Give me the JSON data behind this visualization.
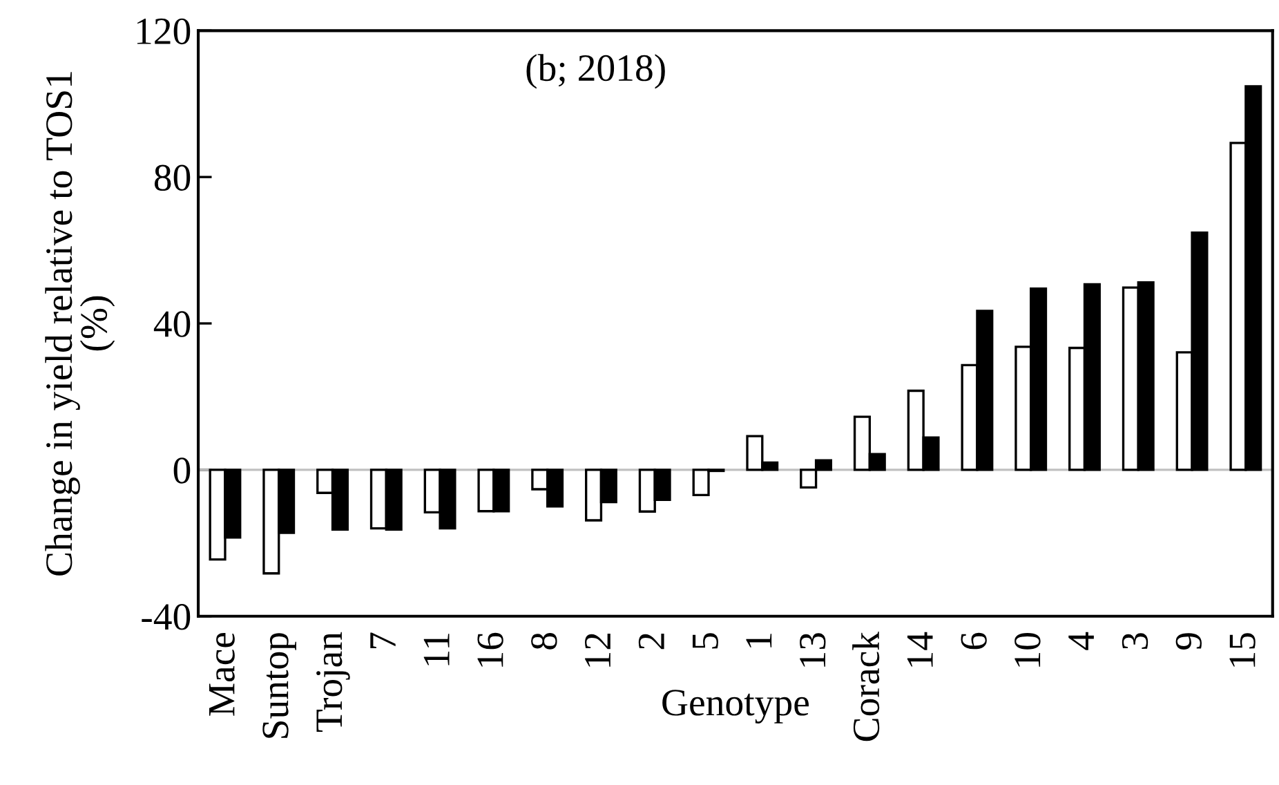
{
  "chart_data": {
    "type": "bar",
    "xlabel": "Genotype",
    "ylabel": "Change in yield relative to TOS1\n(%)",
    "annotations": [
      "(b; 2018)"
    ],
    "categories": [
      "Mace",
      "Suntop",
      "Trojan",
      "7",
      "11",
      "16",
      "8",
      "12",
      "2",
      "5",
      "1",
      "13",
      "Corack",
      "14",
      "6",
      "10",
      "4",
      "3",
      "9",
      "15"
    ],
    "series": [
      {
        "color": "#ffffff",
        "values": [
          -24.5,
          -28.3,
          -6.3,
          -16,
          -11.6,
          -11.3,
          -5.3,
          -13.8,
          -11.4,
          -6.9,
          9.2,
          -4.8,
          14.5,
          21.6,
          28.6,
          33.6,
          33.3,
          49.8,
          32.1,
          89.3
        ]
      },
      {
        "color": "#000000",
        "values": [
          -18.5,
          -17.2,
          -16.3,
          -16.3,
          -16,
          -11.3,
          -10,
          -8.8,
          -8.2,
          -0.3,
          2,
          2.6,
          4.3,
          8.8,
          43.4,
          49.5,
          50.7,
          51.2,
          64.8,
          104.8
        ]
      }
    ],
    "ylim": [
      -40,
      120
    ],
    "yticks": [
      -40,
      0,
      40,
      80,
      120
    ],
    "grid": false,
    "legend": false,
    "ref_lines": [
      {
        "axis": "y",
        "value": 0,
        "color": "#c0c0c0"
      }
    ]
  }
}
